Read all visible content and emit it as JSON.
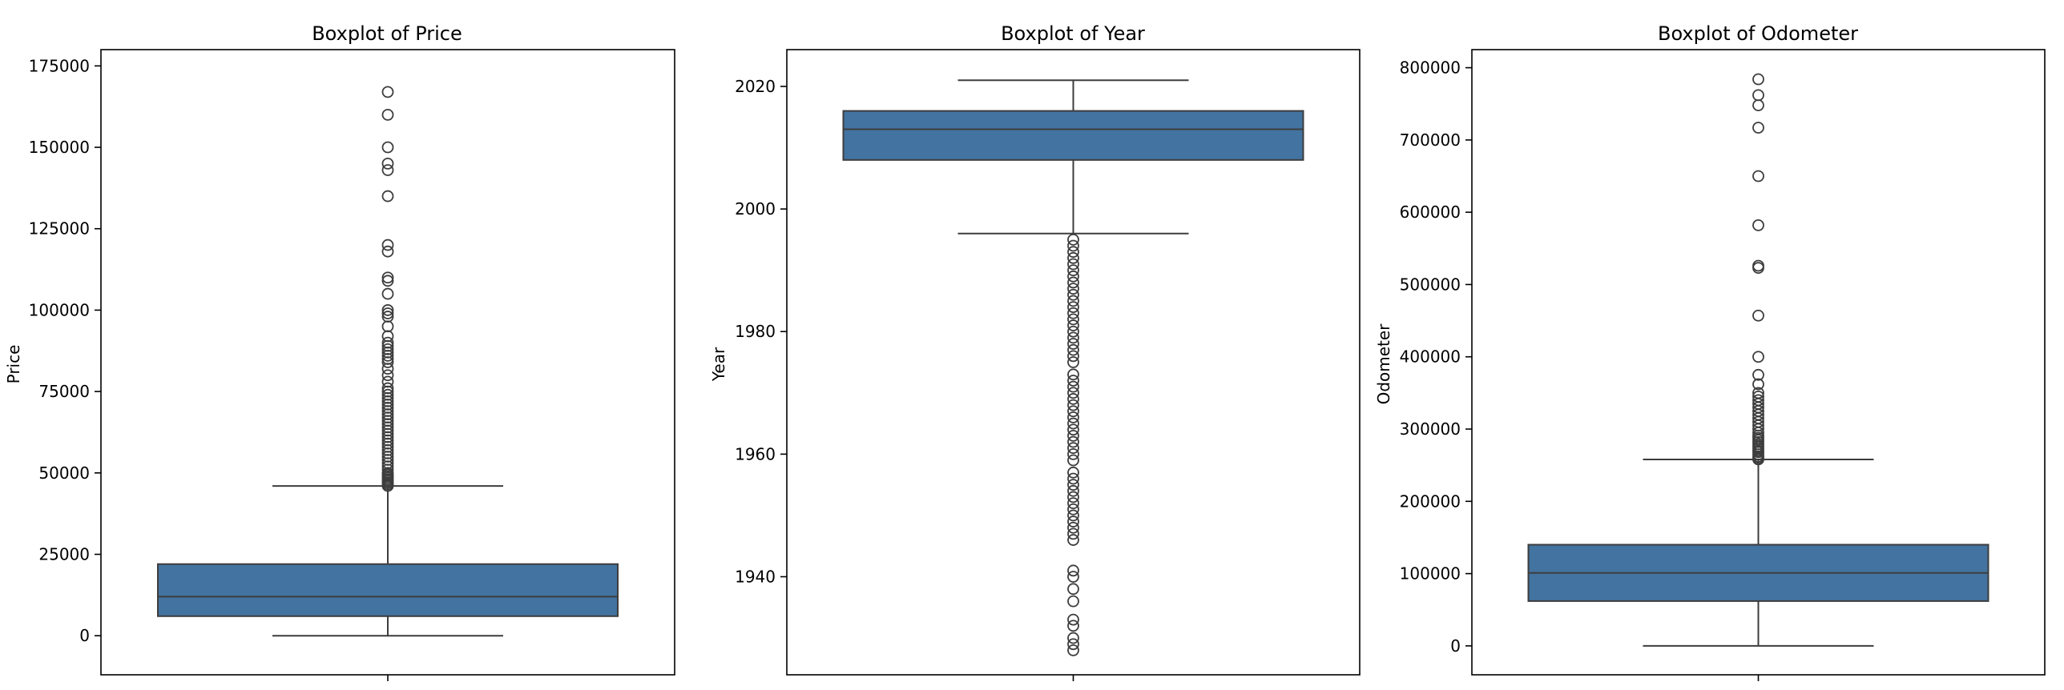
{
  "colors": {
    "box_fill": "#4373a0",
    "line": "#3d3d3d",
    "frame": "#000000",
    "background": "#ffffff"
  },
  "chart_data": [
    {
      "type": "boxplot",
      "title": "Boxplot of Price",
      "xlabel": "",
      "ylabel": "Price",
      "ylim": [
        -12000,
        180000
      ],
      "yticks": [
        0,
        25000,
        50000,
        75000,
        100000,
        125000,
        150000,
        175000
      ],
      "ytick_labels": [
        "0",
        "25000",
        "50000",
        "75000",
        "100000",
        "125000",
        "150000",
        "175000"
      ],
      "box": {
        "whisker_low": 0,
        "q1": 6000,
        "median": 12000,
        "q3": 22000,
        "whisker_high": 46000
      },
      "outliers": [
        46000,
        46500,
        47000,
        47500,
        48000,
        48500,
        49000,
        49500,
        50000,
        51000,
        52000,
        53000,
        54000,
        55000,
        56000,
        57000,
        58000,
        59000,
        60000,
        61000,
        62000,
        63000,
        64000,
        65000,
        66000,
        67000,
        68000,
        69000,
        70000,
        71000,
        72000,
        73000,
        74000,
        75000,
        76000,
        78000,
        80000,
        82000,
        84000,
        85000,
        86000,
        87000,
        88000,
        89000,
        90000,
        92000,
        95000,
        98000,
        99000,
        100000,
        105000,
        109000,
        110000,
        118000,
        120000,
        135000,
        143000,
        145000,
        150000,
        160000,
        167000
      ],
      "grid": false
    },
    {
      "type": "boxplot",
      "title": "Boxplot of Year",
      "xlabel": "",
      "ylabel": "Year",
      "ylim": [
        1924,
        2026
      ],
      "yticks": [
        1940,
        1960,
        1980,
        2000,
        2020
      ],
      "ytick_labels": [
        "1940",
        "1960",
        "1980",
        "2000",
        "2020"
      ],
      "box": {
        "whisker_low": 1996,
        "q1": 2008,
        "median": 2013,
        "q3": 2016,
        "whisker_high": 2021
      },
      "outliers": [
        1928,
        1929,
        1930,
        1932,
        1933,
        1936,
        1938,
        1940,
        1941,
        1946,
        1947,
        1948,
        1949,
        1950,
        1951,
        1952,
        1953,
        1954,
        1955,
        1956,
        1957,
        1959,
        1960,
        1961,
        1962,
        1963,
        1964,
        1965,
        1966,
        1967,
        1968,
        1969,
        1970,
        1971,
        1972,
        1973,
        1975,
        1976,
        1977,
        1978,
        1979,
        1980,
        1981,
        1982,
        1983,
        1984,
        1985,
        1986,
        1987,
        1988,
        1989,
        1990,
        1991,
        1992,
        1993,
        1994,
        1995
      ],
      "grid": false
    },
    {
      "type": "boxplot",
      "title": "Boxplot of Odometer",
      "xlabel": "",
      "ylabel": "Odometer",
      "ylim": [
        -40000,
        825000
      ],
      "yticks": [
        0,
        100000,
        200000,
        300000,
        400000,
        500000,
        600000,
        700000,
        800000
      ],
      "ytick_labels": [
        "0",
        "100000",
        "200000",
        "300000",
        "400000",
        "500000",
        "600000",
        "700000",
        "800000"
      ],
      "box": {
        "whisker_low": 0,
        "q1": 62000,
        "median": 101000,
        "q3": 140000,
        "whisker_high": 258000
      },
      "outliers": [
        258000,
        260000,
        262000,
        265000,
        268000,
        270000,
        273000,
        276000,
        279000,
        282000,
        285000,
        288000,
        291000,
        295000,
        300000,
        305000,
        310000,
        315000,
        320000,
        325000,
        330000,
        335000,
        340000,
        345000,
        350000,
        362000,
        375000,
        400000,
        457000,
        523000,
        526000,
        582000,
        650000,
        717000,
        748000,
        762000,
        784000
      ],
      "grid": false
    }
  ]
}
